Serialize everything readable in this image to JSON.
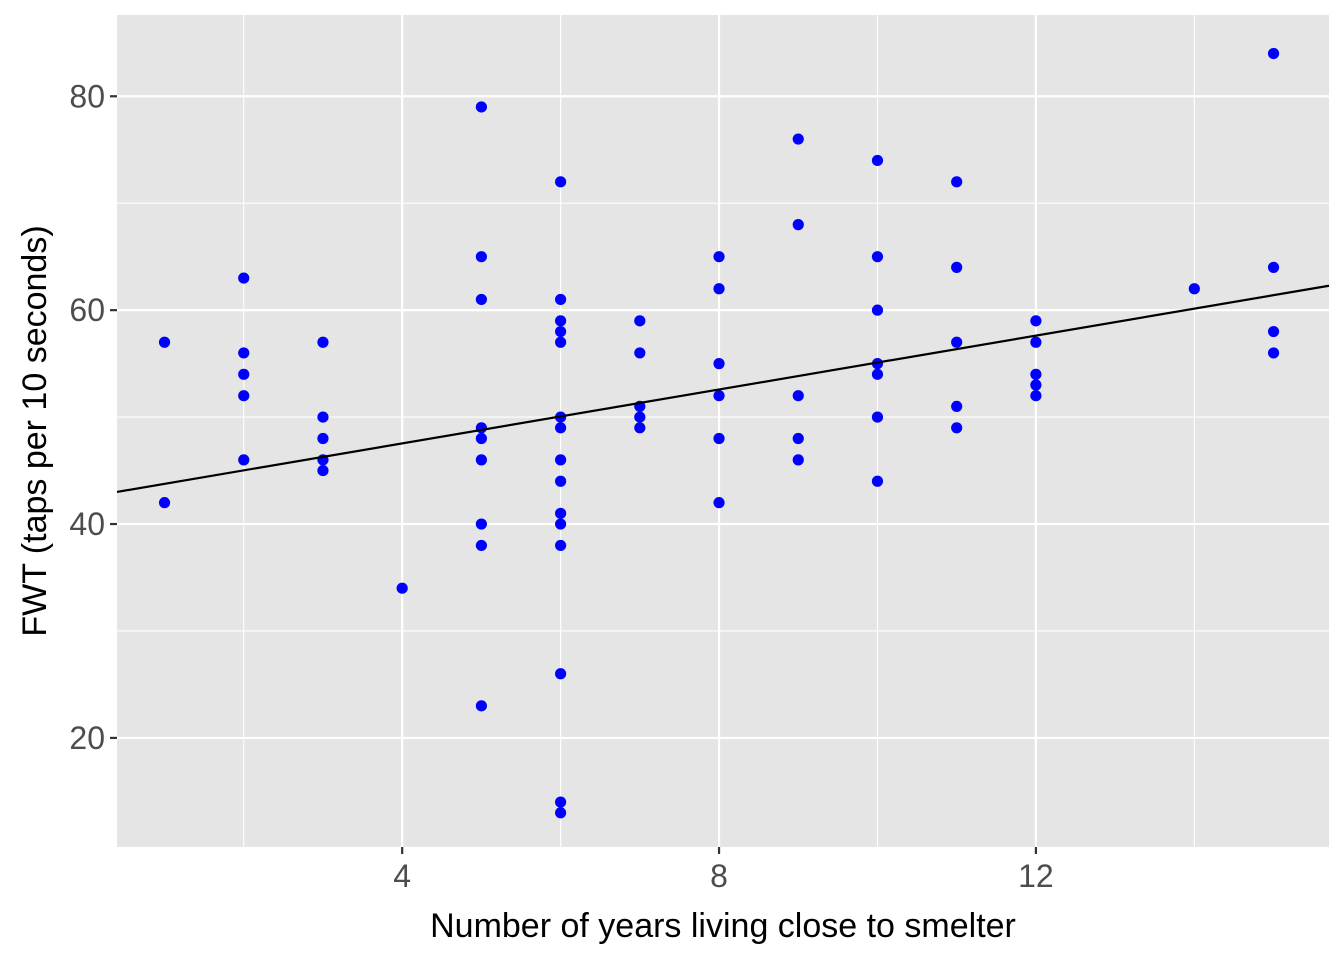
{
  "chart_data": {
    "type": "scatter",
    "title": "",
    "xlabel": "Number of years living close to smelter",
    "ylabel": "FWT (taps per 10 seconds)",
    "xlim": [
      0.4,
      15.7
    ],
    "ylim": [
      9.8,
      87.6
    ],
    "x_ticks": [
      4,
      8,
      12
    ],
    "x_tick_labels": [
      "4",
      "8",
      "12"
    ],
    "x_minor_ticks": [
      2,
      6,
      10,
      14
    ],
    "y_ticks": [
      20,
      40,
      60,
      80
    ],
    "y_tick_labels": [
      "20",
      "40",
      "60",
      "80"
    ],
    "y_minor_ticks": [
      30,
      50,
      70
    ],
    "grid": true,
    "point_color": "#0000ff",
    "line_color": "#000000",
    "panel_background": "#e5e5e5",
    "grid_color": "#ffffff",
    "fit_line": {
      "intercept": 42.5,
      "slope": 1.26
    },
    "points": [
      [
        1,
        57
      ],
      [
        1,
        42
      ],
      [
        2,
        63
      ],
      [
        2,
        56
      ],
      [
        2,
        54
      ],
      [
        2,
        52
      ],
      [
        2,
        46
      ],
      [
        3,
        57
      ],
      [
        3,
        50
      ],
      [
        3,
        48
      ],
      [
        3,
        46
      ],
      [
        3,
        45
      ],
      [
        4,
        34
      ],
      [
        5,
        79
      ],
      [
        5,
        65
      ],
      [
        5,
        61
      ],
      [
        5,
        49
      ],
      [
        5,
        48
      ],
      [
        5,
        46
      ],
      [
        5,
        40
      ],
      [
        5,
        38
      ],
      [
        5,
        23
      ],
      [
        6,
        72
      ],
      [
        6,
        61
      ],
      [
        6,
        59
      ],
      [
        6,
        58
      ],
      [
        6,
        57
      ],
      [
        6,
        50
      ],
      [
        6,
        49
      ],
      [
        6,
        46
      ],
      [
        6,
        44
      ],
      [
        6,
        41
      ],
      [
        6,
        40
      ],
      [
        6,
        38
      ],
      [
        6,
        26
      ],
      [
        6,
        14
      ],
      [
        6,
        13
      ],
      [
        7,
        59
      ],
      [
        7,
        56
      ],
      [
        7,
        51
      ],
      [
        7,
        50
      ],
      [
        7,
        49
      ],
      [
        8,
        65
      ],
      [
        8,
        62
      ],
      [
        8,
        55
      ],
      [
        8,
        52
      ],
      [
        8,
        48
      ],
      [
        8,
        42
      ],
      [
        9,
        76
      ],
      [
        9,
        68
      ],
      [
        9,
        52
      ],
      [
        9,
        48
      ],
      [
        9,
        46
      ],
      [
        10,
        74
      ],
      [
        10,
        65
      ],
      [
        10,
        60
      ],
      [
        10,
        55
      ],
      [
        10,
        54
      ],
      [
        10,
        50
      ],
      [
        10,
        44
      ],
      [
        11,
        72
      ],
      [
        11,
        64
      ],
      [
        11,
        57
      ],
      [
        11,
        51
      ],
      [
        11,
        49
      ],
      [
        12,
        59
      ],
      [
        12,
        57
      ],
      [
        12,
        54
      ],
      [
        12,
        53
      ],
      [
        12,
        52
      ],
      [
        14,
        62
      ],
      [
        15,
        84
      ],
      [
        15,
        64
      ],
      [
        15,
        58
      ],
      [
        15,
        56
      ]
    ]
  }
}
